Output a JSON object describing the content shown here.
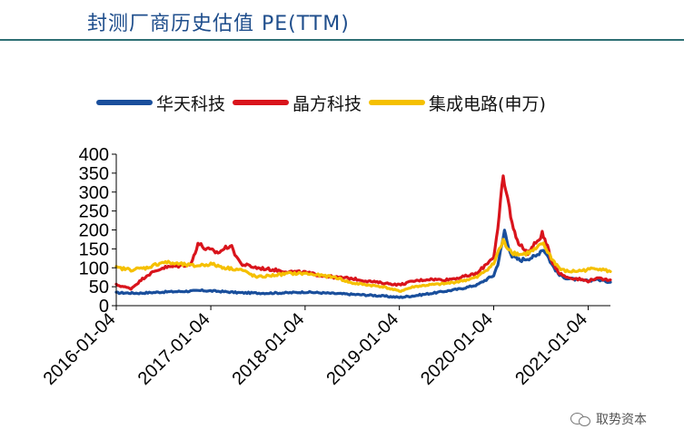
{
  "header": {
    "title": "封测厂商历史估值 PE(TTM)"
  },
  "watermark": {
    "text": "取势资本",
    "icon": "wechat-icon"
  },
  "chart_data": {
    "type": "line",
    "title": "",
    "xlabel": "",
    "ylabel": "",
    "ylim": [
      0,
      400
    ],
    "yticks": [
      0,
      50,
      100,
      150,
      200,
      250,
      300,
      350,
      400
    ],
    "xlim": [
      "2016-01-04",
      "2021-03-31"
    ],
    "xticks": [
      "2016-01-04",
      "2017-01-04",
      "2018-01-04",
      "2019-01-04",
      "2020-01-04",
      "2021-01-04"
    ],
    "grid": false,
    "legend_position": "top",
    "series": [
      {
        "name": "华天科技",
        "color": "#1a4f9c",
        "points": [
          [
            "2016-01-04",
            34
          ],
          [
            "2016-04-01",
            33
          ],
          [
            "2016-07-01",
            36
          ],
          [
            "2016-10-01",
            38
          ],
          [
            "2016-12-01",
            40
          ],
          [
            "2017-02-01",
            38
          ],
          [
            "2017-05-01",
            34
          ],
          [
            "2017-08-01",
            33
          ],
          [
            "2017-11-01",
            34
          ],
          [
            "2018-01-04",
            36
          ],
          [
            "2018-04-01",
            33
          ],
          [
            "2018-07-01",
            30
          ],
          [
            "2018-10-01",
            27
          ],
          [
            "2019-01-04",
            22
          ],
          [
            "2019-03-01",
            26
          ],
          [
            "2019-06-01",
            35
          ],
          [
            "2019-09-01",
            45
          ],
          [
            "2019-11-01",
            55
          ],
          [
            "2020-01-04",
            80
          ],
          [
            "2020-01-20",
            110
          ],
          [
            "2020-02-05",
            160
          ],
          [
            "2020-02-15",
            200
          ],
          [
            "2020-02-25",
            170
          ],
          [
            "2020-03-15",
            130
          ],
          [
            "2020-04-15",
            120
          ],
          [
            "2020-05-15",
            125
          ],
          [
            "2020-06-15",
            130
          ],
          [
            "2020-07-10",
            150
          ],
          [
            "2020-07-25",
            140
          ],
          [
            "2020-08-15",
            110
          ],
          [
            "2020-09-15",
            80
          ],
          [
            "2020-10-15",
            72
          ],
          [
            "2020-12-01",
            68
          ],
          [
            "2021-01-04",
            65
          ],
          [
            "2021-02-01",
            70
          ],
          [
            "2021-03-31",
            62
          ]
        ]
      },
      {
        "name": "晶方科技",
        "color": "#d9141c",
        "points": [
          [
            "2016-01-04",
            55
          ],
          [
            "2016-03-01",
            45
          ],
          [
            "2016-05-01",
            80
          ],
          [
            "2016-07-01",
            100
          ],
          [
            "2016-09-01",
            105
          ],
          [
            "2016-10-20",
            110
          ],
          [
            "2016-11-15",
            165
          ],
          [
            "2016-12-15",
            150
          ],
          [
            "2017-02-01",
            140
          ],
          [
            "2017-03-20",
            160
          ],
          [
            "2017-05-01",
            110
          ],
          [
            "2017-07-01",
            100
          ],
          [
            "2017-09-01",
            95
          ],
          [
            "2017-11-01",
            90
          ],
          [
            "2018-01-04",
            88
          ],
          [
            "2018-03-01",
            80
          ],
          [
            "2018-05-01",
            75
          ],
          [
            "2018-07-01",
            72
          ],
          [
            "2018-09-01",
            65
          ],
          [
            "2018-11-01",
            60
          ],
          [
            "2019-01-04",
            55
          ],
          [
            "2019-03-01",
            65
          ],
          [
            "2019-05-01",
            70
          ],
          [
            "2019-07-01",
            68
          ],
          [
            "2019-09-01",
            75
          ],
          [
            "2019-11-01",
            85
          ],
          [
            "2020-01-04",
            130
          ],
          [
            "2020-01-20",
            200
          ],
          [
            "2020-02-10",
            340
          ],
          [
            "2020-02-20",
            300
          ],
          [
            "2020-03-05",
            260
          ],
          [
            "2020-03-20",
            200
          ],
          [
            "2020-04-15",
            160
          ],
          [
            "2020-05-15",
            140
          ],
          [
            "2020-06-15",
            165
          ],
          [
            "2020-07-10",
            190
          ],
          [
            "2020-07-25",
            165
          ],
          [
            "2020-08-15",
            120
          ],
          [
            "2020-09-15",
            85
          ],
          [
            "2020-10-15",
            75
          ],
          [
            "2020-12-01",
            70
          ],
          [
            "2021-01-04",
            65
          ],
          [
            "2021-02-01",
            72
          ],
          [
            "2021-03-31",
            68
          ]
        ]
      },
      {
        "name": "集成电路(申万)",
        "color": "#f5c000",
        "points": [
          [
            "2016-01-04",
            100
          ],
          [
            "2016-03-01",
            95
          ],
          [
            "2016-05-01",
            100
          ],
          [
            "2016-07-01",
            115
          ],
          [
            "2016-09-01",
            110
          ],
          [
            "2016-11-01",
            105
          ],
          [
            "2017-01-04",
            110
          ],
          [
            "2017-03-01",
            100
          ],
          [
            "2017-05-01",
            95
          ],
          [
            "2017-07-01",
            75
          ],
          [
            "2017-09-01",
            80
          ],
          [
            "2017-11-01",
            85
          ],
          [
            "2018-01-04",
            85
          ],
          [
            "2018-03-01",
            80
          ],
          [
            "2018-05-01",
            75
          ],
          [
            "2018-07-01",
            60
          ],
          [
            "2018-09-01",
            55
          ],
          [
            "2018-11-01",
            50
          ],
          [
            "2019-01-04",
            38
          ],
          [
            "2019-03-01",
            50
          ],
          [
            "2019-05-01",
            55
          ],
          [
            "2019-07-01",
            58
          ],
          [
            "2019-09-01",
            65
          ],
          [
            "2019-11-01",
            75
          ],
          [
            "2020-01-04",
            110
          ],
          [
            "2020-01-20",
            140
          ],
          [
            "2020-02-10",
            170
          ],
          [
            "2020-02-25",
            155
          ],
          [
            "2020-03-20",
            140
          ],
          [
            "2020-04-20",
            135
          ],
          [
            "2020-05-20",
            140
          ],
          [
            "2020-06-20",
            150
          ],
          [
            "2020-07-10",
            165
          ],
          [
            "2020-07-25",
            150
          ],
          [
            "2020-08-20",
            120
          ],
          [
            "2020-09-20",
            95
          ],
          [
            "2020-10-20",
            90
          ],
          [
            "2020-12-01",
            92
          ],
          [
            "2021-01-04",
            95
          ],
          [
            "2021-02-01",
            100
          ],
          [
            "2021-03-31",
            90
          ]
        ]
      }
    ]
  }
}
